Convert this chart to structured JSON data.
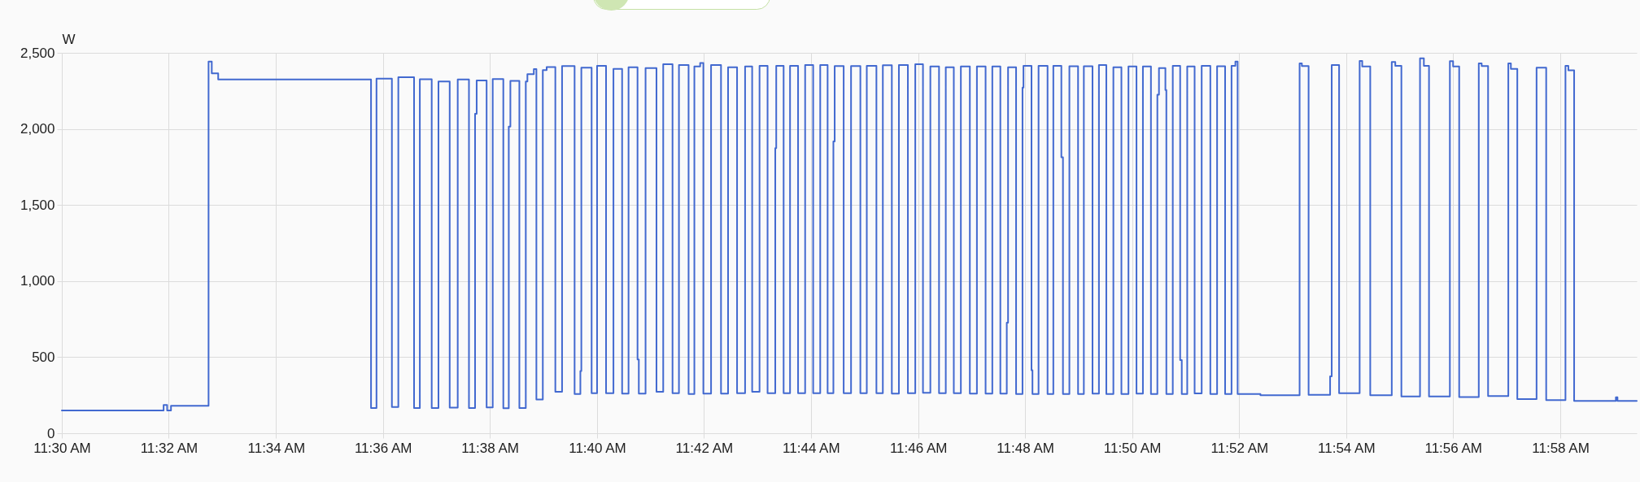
{
  "chart_data": {
    "type": "step",
    "ylabel": "W",
    "x": [
      11.5,
      11.5317,
      11.5328,
      11.534,
      11.5457,
      11.5467,
      11.5487,
      11.5963,
      11.598,
      11.6028,
      11.6048,
      11.6097,
      11.6115,
      11.6152,
      11.6173,
      11.6208,
      11.6233,
      11.6268,
      11.6287,
      11.6292,
      11.6323,
      11.6342,
      11.6375,
      11.6392,
      11.6397,
      11.6425,
      11.6445,
      11.645,
      11.647,
      11.6478,
      11.6498,
      11.651,
      11.6537,
      11.6558,
      11.6597,
      11.6615,
      11.6618,
      11.665,
      11.6667,
      11.6695,
      11.6718,
      11.6745,
      11.6765,
      11.6793,
      11.6797,
      11.6818,
      11.6852,
      11.6873,
      11.6902,
      11.6922,
      11.6952,
      11.697,
      11.6988,
      11.6998,
      11.7022,
      11.7053,
      11.7075,
      11.7103,
      11.7128,
      11.715,
      11.7173,
      11.7198,
      11.7222,
      11.7225,
      11.7248,
      11.7268,
      11.7293,
      11.7315,
      11.734,
      11.7362,
      11.7385,
      11.7403,
      11.7407,
      11.7435,
      11.7458,
      11.7487,
      11.7507,
      11.7537,
      11.7557,
      11.7585,
      11.7607,
      11.7635,
      11.7658,
      11.7682,
      11.7705,
      11.7732,
      11.7753,
      11.7778,
      11.78,
      11.7828,
      11.785,
      11.7877,
      11.7898,
      11.7923,
      11.7943,
      11.7947,
      11.7972,
      11.7992,
      11.7995,
      11.802,
      11.8023,
      11.8042,
      11.807,
      11.8088,
      11.8113,
      11.8118,
      11.8138,
      11.8165,
      11.8183,
      11.821,
      11.823,
      11.8253,
      11.8275,
      11.83,
      11.8322,
      11.8347,
      11.8367,
      11.8392,
      11.8412,
      11.8417,
      11.8437,
      11.844,
      11.846,
      11.8483,
      11.8488,
      11.8505,
      11.8528,
      11.855,
      11.8577,
      11.8598,
      11.8623,
      11.8643,
      11.8655,
      11.8662,
      11.8733,
      11.8855,
      11.8862,
      11.8883,
      11.895,
      11.8955,
      11.8978,
      11.9042,
      11.905,
      11.9075,
      11.9142,
      11.9153,
      11.9172,
      11.923,
      11.9242,
      11.9258,
      11.9323,
      11.9333,
      11.9352,
      11.9413,
      11.9422,
      11.9442,
      11.9505,
      11.9513,
      11.9533,
      11.9593,
      11.9623,
      11.9683,
      11.9692,
      11.971,
      11.984,
      11.9845,
      11.9905
    ],
    "series": [
      {
        "color": "#4269d0",
        "values": [
          150,
          185,
          150,
          180,
          2443,
          2365,
          2325,
          166,
          2330,
          172,
          2340,
          166,
          2326,
          166,
          2312,
          168,
          2325,
          166,
          2100,
          2318,
          170,
          2328,
          164,
          2015,
          2316,
          166,
          2312,
          2360,
          2393,
          222,
          2387,
          2407,
          273,
          2413,
          258,
          408,
          2403,
          263,
          2415,
          263,
          2395,
          260,
          2405,
          485,
          260,
          2400,
          273,
          2425,
          263,
          2420,
          258,
          2410,
          2433,
          260,
          2420,
          260,
          2405,
          263,
          2410,
          273,
          2415,
          263,
          1874,
          2415,
          263,
          2415,
          263,
          2420,
          263,
          2420,
          263,
          1918,
          2413,
          263,
          2413,
          263,
          2415,
          263,
          2418,
          260,
          2420,
          263,
          2425,
          266,
          2410,
          263,
          2405,
          263,
          2410,
          260,
          2410,
          260,
          2410,
          260,
          727,
          2405,
          258,
          2272,
          2415,
          414,
          258,
          2415,
          258,
          2415,
          1813,
          258,
          2412,
          258,
          2412,
          260,
          2420,
          258,
          2405,
          258,
          2410,
          260,
          2410,
          258,
          2225,
          2400,
          2256,
          258,
          2415,
          481,
          258,
          2410,
          262,
          2415,
          258,
          2412,
          258,
          2415,
          2443,
          258,
          250,
          2430,
          2413,
          252,
          374,
          2420,
          263,
          2447,
          2410,
          250,
          2440,
          2415,
          242,
          2464,
          2415,
          242,
          2445,
          2410,
          238,
          2430,
          2413,
          245,
          2430,
          2395,
          225,
          2403,
          218,
          2415,
          2385,
          212,
          236,
          212,
          212
        ]
      }
    ],
    "xlim": [
      11.5,
      11.9905
    ],
    "xticks": [
      {
        "value": 11.5,
        "label": "11:30 AM"
      },
      {
        "value": 11.5333,
        "label": "11:32 AM"
      },
      {
        "value": 11.5667,
        "label": "11:34 AM"
      },
      {
        "value": 11.6,
        "label": "11:36 AM"
      },
      {
        "value": 11.6333,
        "label": "11:38 AM"
      },
      {
        "value": 11.6667,
        "label": "11:40 AM"
      },
      {
        "value": 11.7,
        "label": "11:42 AM"
      },
      {
        "value": 11.7333,
        "label": "11:44 AM"
      },
      {
        "value": 11.7667,
        "label": "11:46 AM"
      },
      {
        "value": 11.8,
        "label": "11:48 AM"
      },
      {
        "value": 11.8333,
        "label": "11:50 AM"
      },
      {
        "value": 11.8667,
        "label": "11:52 AM"
      },
      {
        "value": 11.9,
        "label": "11:54 AM"
      },
      {
        "value": 11.9333,
        "label": "11:56 AM"
      },
      {
        "value": 11.9667,
        "label": "11:58 AM"
      }
    ],
    "ylim": [
      0,
      2500
    ],
    "yticks": [
      0,
      500,
      {
        "value": 1000,
        "label": "1,000"
      },
      {
        "value": 1500,
        "label": "1,500"
      },
      {
        "value": 2000,
        "label": "2,000"
      },
      {
        "value": 2500,
        "label": "2,500"
      }
    ],
    "grid": true,
    "line_style": "solid"
  }
}
